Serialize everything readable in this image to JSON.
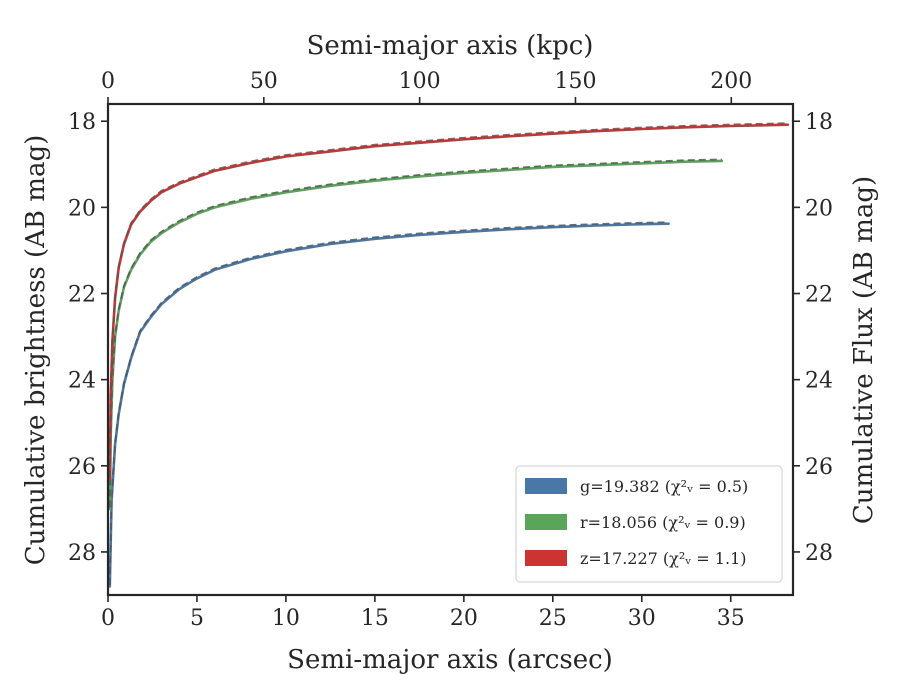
{
  "chart_data": {
    "type": "line",
    "xlabel": "Semi-major axis (arcsec)",
    "x2label": "Semi-major axis (kpc)",
    "ylabel": "Cumulative brightness (AB mag)",
    "y2label": "Cumulative Flux (AB mag)",
    "xlim": [
      0,
      38.5
    ],
    "x2lim": [
      0,
      219.8
    ],
    "ylim": [
      29,
      17.6
    ],
    "y_inverted": true,
    "xticks": [
      0,
      5,
      10,
      15,
      20,
      25,
      30,
      35
    ],
    "x2ticks": [
      0,
      50,
      100,
      150,
      200
    ],
    "yticks": [
      18,
      20,
      22,
      24,
      26,
      28
    ],
    "grid": false,
    "legend_position": "lower-right",
    "series": [
      {
        "name": "g=19.382",
        "chi2_label": "(χ²ᵥ = 0.5)",
        "color": "#4878a8",
        "x": [
          0.1,
          0.2,
          0.4,
          0.6,
          0.9,
          1.3,
          1.8,
          2.4,
          3.0,
          4.0,
          5.0,
          6.0,
          8.0,
          10.0,
          12.5,
          15.0,
          17.5,
          20.0,
          22.5,
          25.0,
          27.5,
          30.0,
          31.5
        ],
        "y": [
          28.8,
          26.8,
          25.5,
          24.8,
          24.1,
          23.5,
          22.9,
          22.55,
          22.25,
          21.9,
          21.65,
          21.45,
          21.2,
          21.02,
          20.85,
          20.73,
          20.64,
          20.57,
          20.51,
          20.46,
          20.42,
          20.39,
          20.38
        ]
      },
      {
        "name": "r=18.056",
        "chi2_label": "(χ²ᵥ = 0.9)",
        "color": "#5aa55a",
        "x": [
          0.1,
          0.15,
          0.25,
          0.4,
          0.6,
          0.9,
          1.3,
          1.8,
          2.4,
          3.0,
          4.0,
          5.0,
          6.0,
          8.0,
          10.0,
          12.5,
          15.0,
          17.5,
          20.0,
          22.5,
          25.0,
          27.5,
          30.0,
          32.5,
          34.5
        ],
        "y": [
          27.0,
          25.3,
          24.0,
          23.0,
          22.4,
          21.85,
          21.45,
          21.1,
          20.8,
          20.6,
          20.35,
          20.15,
          20.0,
          19.8,
          19.65,
          19.5,
          19.38,
          19.28,
          19.2,
          19.13,
          19.06,
          19.02,
          18.98,
          18.94,
          18.92
        ]
      },
      {
        "name": "z=17.227",
        "chi2_label": "(χ²ᵥ = 1.1)",
        "color": "#cc3333",
        "x": [
          0.1,
          0.15,
          0.25,
          0.4,
          0.6,
          0.9,
          1.3,
          1.8,
          2.4,
          3.0,
          4.0,
          5.0,
          6.0,
          8.0,
          10.0,
          12.5,
          15.0,
          17.5,
          20.0,
          22.5,
          25.0,
          27.5,
          30.0,
          32.5,
          35.0,
          38.2
        ],
        "y": [
          26.3,
          24.4,
          23.1,
          22.1,
          21.4,
          20.85,
          20.4,
          20.1,
          19.85,
          19.65,
          19.45,
          19.3,
          19.15,
          18.97,
          18.82,
          18.7,
          18.58,
          18.5,
          18.42,
          18.35,
          18.29,
          18.23,
          18.18,
          18.14,
          18.11,
          18.08
        ]
      }
    ],
    "model_line_style": "dashed",
    "model_line_color": "#555555"
  }
}
